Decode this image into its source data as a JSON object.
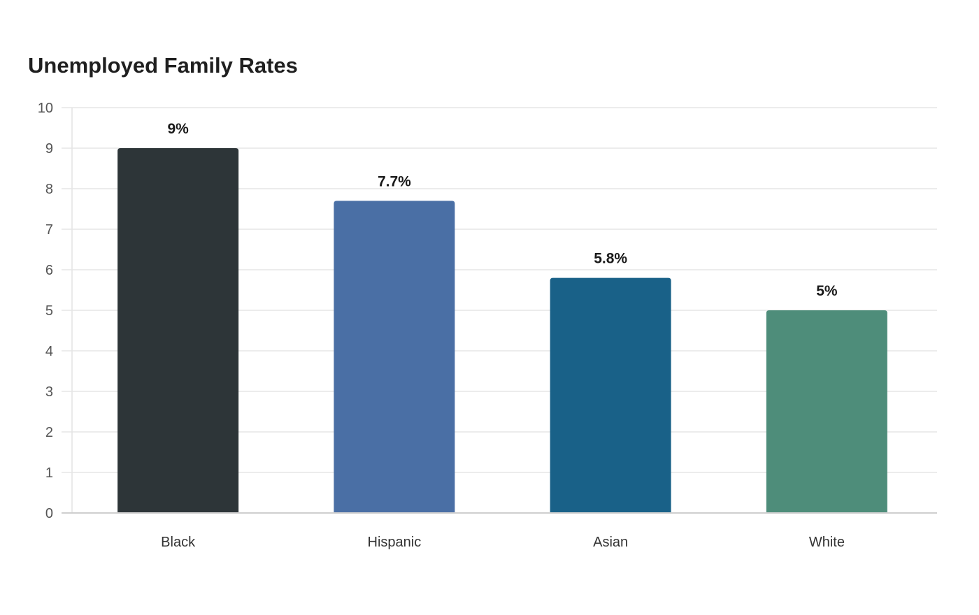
{
  "chart_data": {
    "type": "bar",
    "title": "Unemployed Family Rates",
    "xlabel": "",
    "ylabel": "",
    "categories": [
      "Black",
      "Hispanic",
      "Asian",
      "White"
    ],
    "values": [
      9,
      7.7,
      5.8,
      5
    ],
    "data_labels": [
      "9%",
      "7.7%",
      "5.8%",
      "5%"
    ],
    "colors": [
      "#2d3538",
      "#4a6fa5",
      "#196188",
      "#4e8d7a"
    ],
    "ylim": [
      0,
      10
    ],
    "yticks": [
      0,
      1,
      2,
      3,
      4,
      5,
      6,
      7,
      8,
      9,
      10
    ],
    "grid": true,
    "legend": "none"
  }
}
